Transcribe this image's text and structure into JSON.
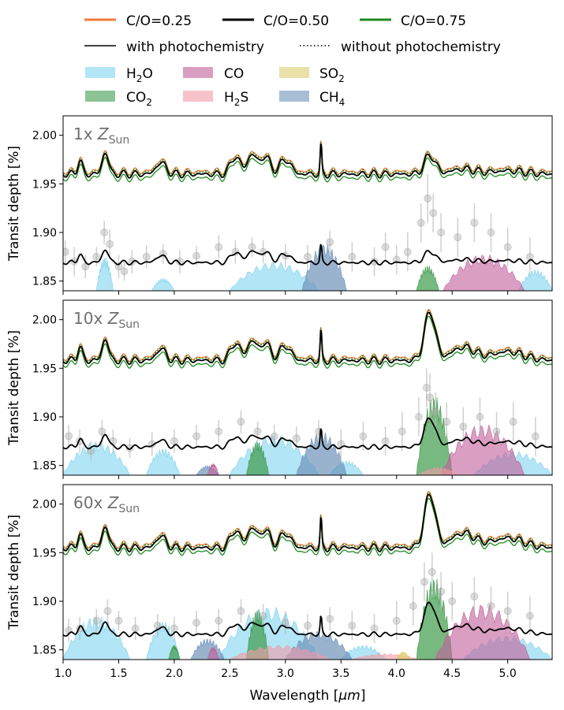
{
  "chart_data": {
    "type": "line",
    "xlabel_main": "Wavelength [",
    "xlabel_unit": "μm",
    "xlabel_end": "]",
    "ylabel": "Transit depth [%]",
    "xlim": [
      1.0,
      5.4
    ],
    "ylim": [
      1.84,
      2.02
    ],
    "xticks": [
      1.0,
      1.5,
      2.0,
      2.5,
      3.0,
      3.5,
      4.0,
      4.5,
      5.0
    ],
    "xtick_labels": [
      "1.0",
      "1.5",
      "2.0",
      "2.5",
      "3.0",
      "3.5",
      "4.0",
      "4.5",
      "5.0"
    ],
    "yticks": [
      1.85,
      1.9,
      1.95,
      2.0
    ],
    "ytick_labels": [
      "1.85",
      "1.90",
      "1.95",
      "2.00"
    ],
    "legend": {
      "lines": [
        {
          "label": "C/O=0.25",
          "color": "#f07a3a"
        },
        {
          "label": "C/O=0.50",
          "color": "#000000"
        },
        {
          "label": "C/O=0.75",
          "color": "#1f8a1f"
        }
      ],
      "styles": [
        {
          "label": "with photochemistry",
          "dash": "solid"
        },
        {
          "label": "without photochemistry",
          "dash": "dotted"
        }
      ],
      "species": [
        {
          "base": "H",
          "sub": "2",
          "rest": "O",
          "color": "#7fd3ee"
        },
        {
          "base": "CO",
          "sub": "",
          "rest": "",
          "color": "#c25d9a"
        },
        {
          "base": "SO",
          "sub": "2",
          "rest": "",
          "color": "#dccd6e"
        },
        {
          "base": "CO",
          "sub": "2",
          "rest": "",
          "color": "#3e9b4c"
        },
        {
          "base": "H",
          "sub": "2",
          "rest": "S",
          "color": "#f29aa5"
        },
        {
          "base": "CH",
          "sub": "4",
          "rest": "",
          "color": "#6e93bb"
        }
      ]
    },
    "panels": [
      {
        "label_prefix": "1x ",
        "label_symbol": "Z",
        "label_sub": "Sun",
        "metallicity": 1,
        "model_baseline": 1.96,
        "model_scale": 0.35,
        "low_model_baseline": 1.869,
        "low_model_scale": 0.35,
        "species_bands": [
          {
            "species": "H2O",
            "ranges": [
              [
                1.3,
                1.45,
                1.875
              ],
              [
                1.8,
                2.0,
                1.853
              ],
              [
                2.5,
                3.3,
                1.87
              ],
              [
                5.1,
                5.4,
                1.862
              ]
            ]
          },
          {
            "species": "CO2",
            "ranges": [
              [
                4.18,
                4.38,
                1.866
              ]
            ]
          },
          {
            "species": "CH4",
            "ranges": [
              [
                3.15,
                3.55,
                1.889
              ]
            ]
          },
          {
            "species": "CO",
            "ranges": [
              [
                4.42,
                5.15,
                1.878
              ]
            ]
          }
        ],
        "observations": [
          [
            1.02,
            1.88,
            0.012
          ],
          [
            1.1,
            1.87,
            0.015
          ],
          [
            1.2,
            1.865,
            0.012
          ],
          [
            1.3,
            1.875,
            0.01
          ],
          [
            1.37,
            1.9,
            0.012
          ],
          [
            1.42,
            1.888,
            0.015
          ],
          [
            1.5,
            1.865,
            0.012
          ],
          [
            1.55,
            1.86,
            0.01
          ],
          [
            1.62,
            1.87,
            0.012
          ],
          [
            1.75,
            1.875,
            0.012
          ],
          [
            1.9,
            1.878,
            0.01
          ],
          [
            2.05,
            1.87,
            0.012
          ],
          [
            2.2,
            1.876,
            0.01
          ],
          [
            2.4,
            1.885,
            0.012
          ],
          [
            2.55,
            1.88,
            0.012
          ],
          [
            2.7,
            1.885,
            0.01
          ],
          [
            2.8,
            1.88,
            0.012
          ],
          [
            3.0,
            1.876,
            0.012
          ],
          [
            3.2,
            1.875,
            0.012
          ],
          [
            3.4,
            1.89,
            0.012
          ],
          [
            3.6,
            1.875,
            0.015
          ],
          [
            3.8,
            1.87,
            0.015
          ],
          [
            3.9,
            1.885,
            0.015
          ],
          [
            4.0,
            1.872,
            0.015
          ],
          [
            4.1,
            1.88,
            0.02
          ],
          [
            4.22,
            1.91,
            0.02
          ],
          [
            4.28,
            1.935,
            0.025
          ],
          [
            4.33,
            1.92,
            0.02
          ],
          [
            4.4,
            1.9,
            0.02
          ],
          [
            4.55,
            1.895,
            0.02
          ],
          [
            4.7,
            1.91,
            0.02
          ],
          [
            4.85,
            1.9,
            0.02
          ],
          [
            5.0,
            1.885,
            0.02
          ],
          [
            5.2,
            1.875,
            0.02
          ]
        ]
      },
      {
        "label_prefix": "10x ",
        "label_symbol": "Z",
        "label_sub": "Sun",
        "metallicity": 10,
        "model_baseline": 1.958,
        "model_scale": 0.9,
        "low_model_baseline": 1.869,
        "low_model_scale": 0.9,
        "species_bands": [
          {
            "species": "H2O",
            "ranges": [
              [
                1.0,
                1.6,
                1.875
              ],
              [
                1.75,
                2.05,
                1.868
              ],
              [
                2.5,
                3.3,
                1.882
              ],
              [
                3.4,
                3.7,
                1.855
              ],
              [
                4.7,
                5.4,
                1.865
              ]
            ]
          },
          {
            "species": "CO2",
            "ranges": [
              [
                2.65,
                2.85,
                1.875
              ],
              [
                4.18,
                4.5,
                1.922
              ]
            ]
          },
          {
            "species": "CH4",
            "ranges": [
              [
                3.1,
                3.55,
                1.885
              ],
              [
                2.2,
                2.4,
                1.85
              ]
            ]
          },
          {
            "species": "CO",
            "ranges": [
              [
                2.3,
                2.4,
                1.852
              ],
              [
                4.4,
                5.15,
                1.893
              ]
            ]
          },
          {
            "species": "H2S",
            "ranges": [
              [
                4.2,
                4.55,
                1.848
              ]
            ]
          }
        ],
        "observations": [
          [
            1.05,
            1.88,
            0.012
          ],
          [
            1.15,
            1.875,
            0.012
          ],
          [
            1.25,
            1.865,
            0.01
          ],
          [
            1.35,
            1.885,
            0.012
          ],
          [
            1.45,
            1.875,
            0.012
          ],
          [
            1.6,
            1.868,
            0.01
          ],
          [
            1.8,
            1.872,
            0.012
          ],
          [
            2.0,
            1.875,
            0.012
          ],
          [
            2.2,
            1.88,
            0.012
          ],
          [
            2.4,
            1.885,
            0.012
          ],
          [
            2.6,
            1.895,
            0.012
          ],
          [
            2.75,
            1.885,
            0.01
          ],
          [
            2.9,
            1.88,
            0.012
          ],
          [
            3.1,
            1.878,
            0.012
          ],
          [
            3.3,
            1.885,
            0.012
          ],
          [
            3.5,
            1.872,
            0.015
          ],
          [
            3.7,
            1.88,
            0.015
          ],
          [
            3.9,
            1.875,
            0.015
          ],
          [
            4.05,
            1.885,
            0.02
          ],
          [
            4.2,
            1.9,
            0.02
          ],
          [
            4.27,
            1.93,
            0.02
          ],
          [
            4.3,
            1.92,
            0.025
          ],
          [
            4.35,
            1.905,
            0.02
          ],
          [
            4.45,
            1.895,
            0.02
          ],
          [
            4.6,
            1.89,
            0.02
          ],
          [
            4.75,
            1.9,
            0.02
          ],
          [
            4.9,
            1.885,
            0.02
          ],
          [
            5.05,
            1.895,
            0.02
          ],
          [
            5.25,
            1.88,
            0.02
          ]
        ]
      },
      {
        "label_prefix": "60x ",
        "label_symbol": "Z",
        "label_sub": "Sun",
        "metallicity": 60,
        "model_baseline": 1.955,
        "model_scale": 1.0,
        "low_model_baseline": 1.866,
        "low_model_scale": 1.0,
        "species_bands": [
          {
            "species": "H2O",
            "ranges": [
              [
                1.0,
                1.6,
                1.885
              ],
              [
                1.75,
                2.05,
                1.88
              ],
              [
                2.4,
                3.3,
                1.895
              ],
              [
                3.5,
                3.9,
                1.855
              ],
              [
                4.6,
                5.4,
                1.865
              ]
            ]
          },
          {
            "species": "CO2",
            "ranges": [
              [
                1.95,
                2.05,
                1.855
              ],
              [
                2.65,
                2.85,
                1.892
              ],
              [
                4.18,
                4.5,
                1.925
              ]
            ]
          },
          {
            "species": "CH4",
            "ranges": [
              [
                2.15,
                2.45,
                1.862
              ],
              [
                3.0,
                3.6,
                1.87
              ]
            ]
          },
          {
            "species": "CO",
            "ranges": [
              [
                2.3,
                2.4,
                1.853
              ],
              [
                4.35,
                5.2,
                1.898
              ]
            ]
          },
          {
            "species": "H2S",
            "ranges": [
              [
                2.5,
                3.4,
                1.855
              ],
              [
                3.6,
                4.2,
                1.846
              ]
            ]
          },
          {
            "species": "SO2",
            "ranges": [
              [
                4.0,
                4.12,
                1.848
              ]
            ]
          }
        ],
        "observations": [
          [
            1.05,
            1.87,
            0.012
          ],
          [
            1.15,
            1.872,
            0.012
          ],
          [
            1.3,
            1.88,
            0.012
          ],
          [
            1.4,
            1.89,
            0.012
          ],
          [
            1.5,
            1.88,
            0.01
          ],
          [
            1.65,
            1.872,
            0.012
          ],
          [
            1.85,
            1.875,
            0.012
          ],
          [
            2.0,
            1.872,
            0.012
          ],
          [
            2.2,
            1.878,
            0.012
          ],
          [
            2.4,
            1.88,
            0.012
          ],
          [
            2.6,
            1.89,
            0.012
          ],
          [
            2.8,
            1.885,
            0.012
          ],
          [
            3.0,
            1.878,
            0.012
          ],
          [
            3.2,
            1.875,
            0.012
          ],
          [
            3.4,
            1.882,
            0.012
          ],
          [
            3.6,
            1.875,
            0.015
          ],
          [
            3.8,
            1.872,
            0.015
          ],
          [
            4.0,
            1.88,
            0.02
          ],
          [
            4.15,
            1.895,
            0.02
          ],
          [
            4.25,
            1.92,
            0.02
          ],
          [
            4.32,
            1.93,
            0.02
          ],
          [
            4.4,
            1.91,
            0.02
          ],
          [
            4.5,
            1.9,
            0.02
          ],
          [
            4.7,
            1.905,
            0.02
          ],
          [
            4.85,
            1.895,
            0.02
          ],
          [
            5.0,
            1.89,
            0.02
          ],
          [
            5.2,
            1.885,
            0.02
          ]
        ]
      }
    ]
  }
}
